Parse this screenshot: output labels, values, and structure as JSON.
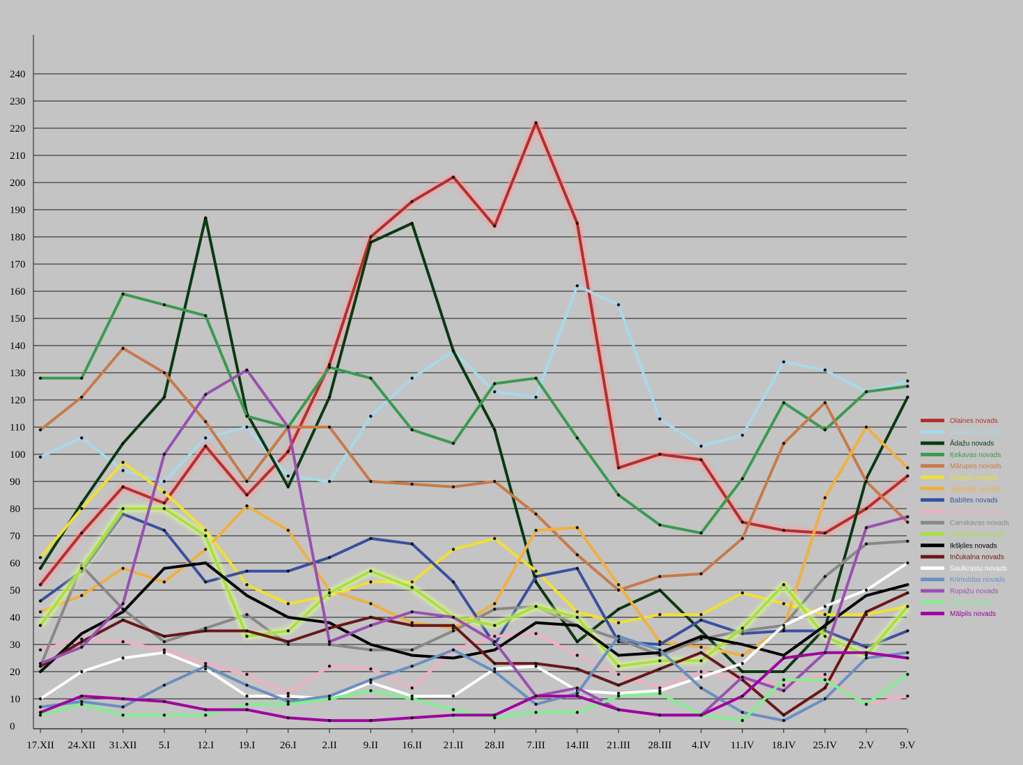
{
  "chart_data": {
    "type": "line",
    "title": "",
    "xlabel": "",
    "ylabel": "",
    "ylim": [
      0,
      240
    ],
    "grid": true,
    "legend_position": "right",
    "categories": [
      "17.XII",
      "24.XII",
      "31.XII",
      "5.I",
      "12.I",
      "19.I",
      "26.I",
      "2.II",
      "9.II",
      "16.II",
      "21.II",
      "28.II",
      "7.III",
      "14.III",
      "21.III",
      "28.III",
      "4.IV",
      "11.IV",
      "18.IV",
      "25.IV",
      "2.V",
      "9.V"
    ],
    "y_ticks": [
      0,
      10,
      20,
      30,
      40,
      50,
      60,
      70,
      80,
      90,
      100,
      110,
      120,
      130,
      140,
      150,
      160,
      170,
      180,
      190,
      200,
      210,
      220,
      230,
      240
    ],
    "series": [
      {
        "name": "Olaines novads",
        "color": "#b03030",
        "glow": "#ff9a9a",
        "values": [
          52,
          71,
          88,
          82,
          103,
          85,
          101,
          133,
          180,
          193,
          202,
          184,
          222,
          185,
          95,
          100,
          98,
          75,
          72,
          71,
          80,
          92
        ]
      },
      {
        "name": "Salaspils novads",
        "color": "#a8d8ea",
        "values": [
          99,
          106,
          94,
          90,
          106,
          110,
          92,
          90,
          114,
          128,
          138,
          123,
          121,
          162,
          155,
          113,
          103,
          107,
          134,
          131,
          123,
          127
        ]
      },
      {
        "name": "Ādažu novads",
        "color": "#0a3a12",
        "values": [
          58,
          82,
          104,
          121,
          187,
          115,
          88,
          121,
          178,
          185,
          138,
          109,
          53,
          31,
          43,
          50,
          35,
          20,
          20,
          36,
          91,
          121
        ]
      },
      {
        "name": "Ķekavas novads",
        "color": "#3a9a50",
        "values": [
          128,
          128,
          159,
          155,
          151,
          114,
          110,
          132,
          128,
          109,
          104,
          126,
          128,
          106,
          85,
          74,
          71,
          91,
          119,
          109,
          123,
          125
        ]
      },
      {
        "name": "Mārupes novads",
        "color": "#c87a48",
        "values": [
          109,
          121,
          139,
          130,
          112,
          90,
          110,
          110,
          90,
          89,
          88,
          90,
          78,
          63,
          50,
          55,
          56,
          69,
          104,
          119,
          90,
          75
        ]
      },
      {
        "name": "Stopiņu novads",
        "color": "#f0e030",
        "values": [
          62,
          80,
          97,
          86,
          72,
          52,
          45,
          48,
          53,
          53,
          65,
          69,
          57,
          42,
          38,
          41,
          41,
          49,
          45,
          41,
          41,
          44
        ]
      },
      {
        "name": "Siguldas novads",
        "color": "#f0b040",
        "values": [
          42,
          48,
          58,
          53,
          65,
          81,
          72,
          50,
          45,
          38,
          36,
          45,
          72,
          73,
          52,
          31,
          29,
          26,
          36,
          84,
          110,
          95
        ]
      },
      {
        "name": "Babītes novads",
        "color": "#3a50a0",
        "values": [
          46,
          57,
          78,
          72,
          53,
          57,
          57,
          62,
          69,
          67,
          53,
          30,
          55,
          58,
          31,
          30,
          39,
          34,
          35,
          35,
          29,
          35
        ]
      },
      {
        "name": "Baldones novads",
        "color": "#f0b0c0",
        "values": [
          28,
          32,
          31,
          28,
          23,
          19,
          12,
          22,
          21,
          14,
          28,
          33,
          34,
          26,
          19,
          14,
          20,
          17,
          15,
          19,
          8,
          11
        ]
      },
      {
        "name": "Carnikavas novads",
        "color": "#888888",
        "values": [
          22,
          59,
          43,
          31,
          36,
          41,
          30,
          30,
          28,
          28,
          35,
          43,
          44,
          37,
          32,
          26,
          32,
          35,
          37,
          55,
          67,
          68
        ]
      },
      {
        "name": "Inčukalna novads",
        "color": "#a8e040",
        "glow": "#e0ff90",
        "values": [
          37,
          58,
          80,
          80,
          70,
          33,
          35,
          49,
          57,
          51,
          40,
          37,
          44,
          40,
          22,
          24,
          24,
          36,
          52,
          33,
          26,
          44
        ]
      },
      {
        "name": "Ikšķiles novads",
        "color": "#000000",
        "values": [
          20,
          34,
          42,
          58,
          60,
          48,
          40,
          38,
          30,
          26,
          25,
          28,
          38,
          37,
          26,
          27,
          33,
          30,
          26,
          37,
          48,
          52
        ]
      },
      {
        "name": "Inčukalna novads ",
        "color": "#6a1818",
        "values": [
          22,
          31,
          39,
          33,
          35,
          35,
          31,
          36,
          40,
          37,
          37,
          23,
          23,
          21,
          15,
          21,
          27,
          17,
          4,
          14,
          42,
          49
        ]
      },
      {
        "name": "Saulkrastu novads",
        "color": "#ffffff",
        "values": [
          10,
          20,
          25,
          27,
          21,
          11,
          11,
          10,
          16,
          11,
          11,
          21,
          22,
          13,
          12,
          13,
          18,
          23,
          37,
          44,
          50,
          60
        ]
      },
      {
        "name": "Krimuldas novads",
        "color": "#6a90c0",
        "values": [
          7,
          9,
          7,
          15,
          22,
          15,
          9,
          11,
          17,
          22,
          28,
          20,
          8,
          12,
          33,
          28,
          14,
          5,
          2,
          10,
          25,
          27
        ]
      },
      {
        "name": "Ropažu novads",
        "color": "#9a50b0",
        "values": [
          23,
          29,
          45,
          100,
          122,
          131,
          110,
          31,
          37,
          42,
          40,
          31,
          11,
          14,
          6,
          4,
          4,
          18,
          13,
          27,
          73,
          77
        ]
      },
      {
        "name": "Sējas novads",
        "color": "#80f090",
        "values": [
          4,
          8,
          4,
          4,
          4,
          8,
          8,
          10,
          13,
          10,
          6,
          3,
          5,
          5,
          11,
          12,
          4,
          2,
          17,
          17,
          8,
          19
        ]
      },
      {
        "name": "Mālpils novads",
        "color": "#a000a0",
        "values": [
          5,
          11,
          10,
          9,
          6,
          6,
          3,
          2,
          2,
          3,
          4,
          4,
          11,
          11,
          6,
          4,
          4,
          11,
          25,
          27,
          27,
          25
        ]
      }
    ]
  }
}
